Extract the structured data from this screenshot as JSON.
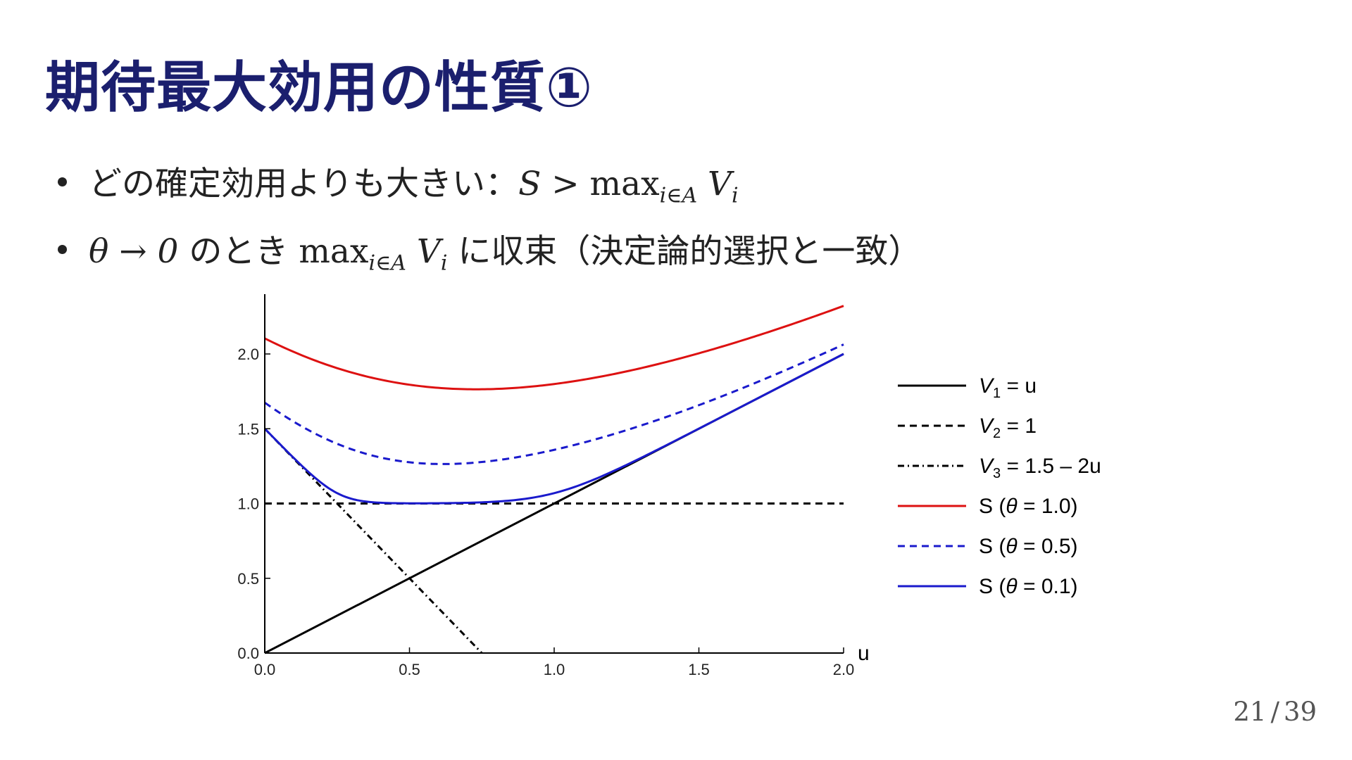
{
  "slide": {
    "title": "期待最大効用の性質①",
    "bullets": [
      {
        "text": "どの確定効用よりも大きい：",
        "math_lhs": "S > ",
        "math_max": "max",
        "math_sub": "i∈A",
        "math_v": " V",
        "math_vsub": "i"
      },
      {
        "math_pre": "θ → 0",
        "text_mid": " のとき ",
        "math_max": "max",
        "math_sub": "i∈A",
        "math_v": " V",
        "math_vsub": "i",
        "text_post": " に収束（決定論的選択と一致）"
      }
    ],
    "page_current": "21",
    "page_sep": "/",
    "page_total": "39"
  },
  "chart_data": {
    "type": "line",
    "xlabel": "u",
    "ylabel": "",
    "xlim": [
      0,
      2
    ],
    "ylim": [
      0,
      2.4
    ],
    "xticks": [
      "0.0",
      "0.5",
      "1.0",
      "1.5",
      "2.0"
    ],
    "yticks": [
      "0.0",
      "0.5",
      "1.0",
      "1.5",
      "2.0"
    ],
    "legend_position": "right",
    "grid": false,
    "series": [
      {
        "name": "V1 = u",
        "color": "#000000",
        "dash": "solid",
        "kind": "V1",
        "label": {
          "prefix": "V",
          "sub": "1",
          "suffix": " = u"
        }
      },
      {
        "name": "V2 = 1",
        "color": "#000000",
        "dash": "dashed",
        "kind": "V2",
        "label": {
          "prefix": "V",
          "sub": "2",
          "suffix": " = 1"
        }
      },
      {
        "name": "V3 = 1.5 – 2u",
        "color": "#000000",
        "dash": "dashdot",
        "kind": "V3",
        "label": {
          "prefix": "V",
          "sub": "3",
          "suffix": " = 1.5 – 2u"
        }
      },
      {
        "name": "S (θ = 1.0)",
        "color": "#dd1111",
        "dash": "solid",
        "kind": "S",
        "theta": 1.0,
        "label": {
          "pre": "S (",
          "theta": "θ",
          "post": " = 1.0)"
        }
      },
      {
        "name": "S (θ = 0.5)",
        "color": "#1a1acc",
        "dash": "dashed",
        "kind": "S",
        "theta": 0.5,
        "label": {
          "pre": "S (",
          "theta": "θ",
          "post": " = 0.5)"
        }
      },
      {
        "name": "S (θ = 0.1)",
        "color": "#1a1acc",
        "dash": "solid",
        "kind": "S",
        "theta": 0.1,
        "label": {
          "pre": "S (",
          "theta": "θ",
          "post": " = 0.1)"
        }
      }
    ]
  }
}
